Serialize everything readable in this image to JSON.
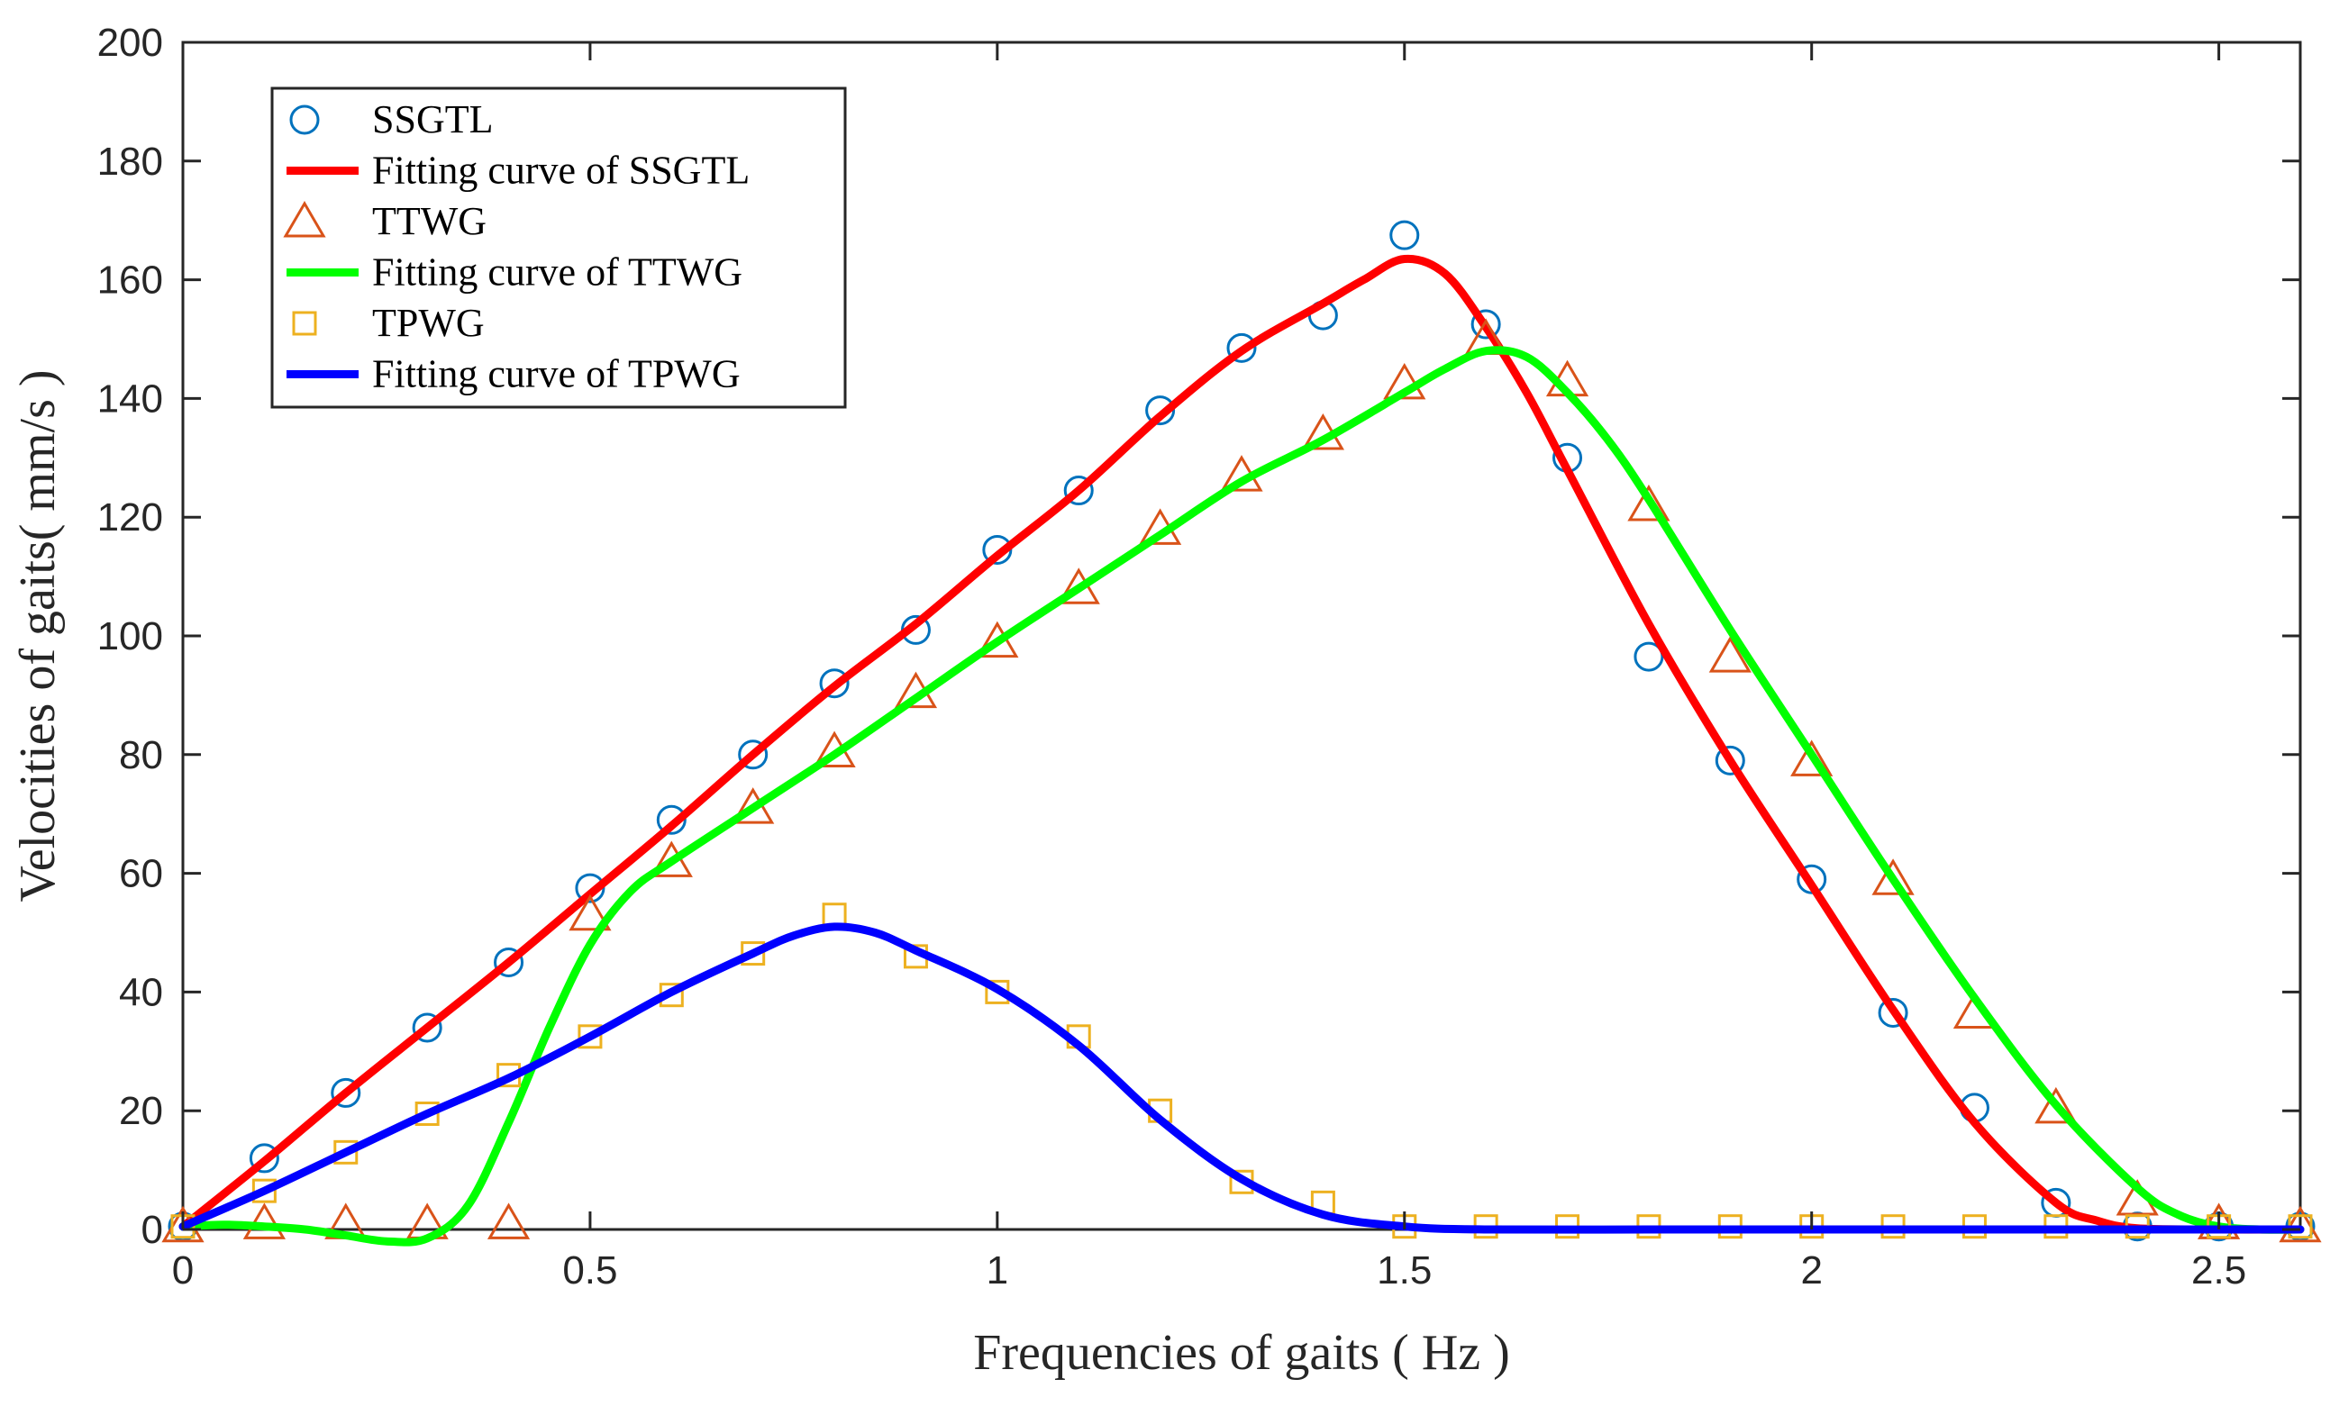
{
  "chart_data": {
    "type": "line",
    "title": "",
    "xlabel": "Frequencies of gaits ( Hz )",
    "ylabel": "Velocities of gaits( mm/s )",
    "xlim": [
      0,
      2.6
    ],
    "ylim": [
      0,
      200
    ],
    "xticks": [
      0,
      0.5,
      1,
      1.5,
      2,
      2.5
    ],
    "xtick_labels": [
      "0",
      "0.5",
      "1",
      "1.5",
      "2",
      "2.5"
    ],
    "yticks": [
      0,
      20,
      40,
      60,
      80,
      100,
      120,
      140,
      160,
      180,
      200
    ],
    "ytick_labels": [
      "0",
      "20",
      "40",
      "60",
      "80",
      "100",
      "120",
      "140",
      "160",
      "180",
      "200"
    ],
    "grid": false,
    "legend_position": "top-left",
    "series": [
      {
        "name": "SSGTL",
        "kind": "markers",
        "marker": "circle",
        "color": "#0072BD",
        "x": [
          0,
          0.1,
          0.2,
          0.3,
          0.4,
          0.5,
          0.6,
          0.7,
          0.8,
          0.9,
          1.0,
          1.1,
          1.2,
          1.3,
          1.4,
          1.5,
          1.6,
          1.7,
          1.8,
          1.9,
          2.0,
          2.1,
          2.2,
          2.3,
          2.4,
          2.5,
          2.6
        ],
        "y": [
          0.5,
          12,
          23,
          34,
          45,
          57.5,
          69,
          80,
          92,
          101,
          114.5,
          124.5,
          138,
          148.5,
          154,
          167.5,
          152.5,
          130,
          96.5,
          79,
          59,
          36.5,
          20.5,
          4.5,
          0.5,
          0.5,
          0.5
        ]
      },
      {
        "name": "Fitting curve of SSGTL",
        "kind": "line",
        "color": "#FF0000",
        "x": [
          0,
          0.1,
          0.2,
          0.3,
          0.4,
          0.5,
          0.6,
          0.7,
          0.8,
          0.9,
          1.0,
          1.1,
          1.2,
          1.3,
          1.4,
          1.45,
          1.5,
          1.55,
          1.6,
          1.65,
          1.7,
          1.8,
          1.9,
          2.0,
          2.1,
          2.2,
          2.3,
          2.35,
          2.4,
          2.5,
          2.6
        ],
        "y": [
          0.5,
          11.5,
          23,
          34,
          45,
          56.5,
          68,
          80,
          91.5,
          102,
          113.5,
          124.5,
          137,
          148,
          156,
          160,
          163.5,
          161,
          152,
          141,
          128,
          102,
          79,
          58,
          37,
          18,
          4.5,
          1.5,
          0.2,
          0,
          0
        ]
      },
      {
        "name": "TTWG",
        "kind": "markers",
        "marker": "triangle",
        "color": "#D95319",
        "x": [
          0,
          0.1,
          0.2,
          0.3,
          0.4,
          0.5,
          0.6,
          0.7,
          0.8,
          0.9,
          1.0,
          1.1,
          1.2,
          1.3,
          1.4,
          1.5,
          1.6,
          1.7,
          1.8,
          1.9,
          2.0,
          2.1,
          2.2,
          2.3,
          2.4,
          2.5,
          2.6
        ],
        "y": [
          0.5,
          1,
          1,
          1,
          1,
          53,
          62,
          71,
          80.5,
          90.5,
          99,
          108,
          118,
          127,
          134,
          142.5,
          150,
          143,
          122,
          96.5,
          79,
          59,
          36.5,
          20.5,
          5,
          1,
          0.5
        ]
      },
      {
        "name": "Fitting curve of TTWG",
        "kind": "line",
        "color": "#00FF00",
        "x": [
          0,
          0.05,
          0.1,
          0.15,
          0.2,
          0.25,
          0.3,
          0.35,
          0.4,
          0.45,
          0.5,
          0.55,
          0.6,
          0.7,
          0.8,
          0.9,
          1.0,
          1.1,
          1.2,
          1.3,
          1.4,
          1.5,
          1.55,
          1.6,
          1.65,
          1.7,
          1.75,
          1.8,
          1.9,
          2.0,
          2.1,
          2.2,
          2.3,
          2.4,
          2.45,
          2.5,
          2.55,
          2.6
        ],
        "y": [
          0.5,
          0.8,
          0.5,
          0,
          -1,
          -2,
          -1.5,
          4,
          18,
          34,
          48,
          57,
          62,
          71,
          80,
          89.5,
          99,
          108,
          117,
          126,
          133,
          141,
          145,
          148,
          147,
          141,
          133,
          123,
          101,
          80,
          59,
          39,
          21,
          7,
          2.5,
          0.5,
          0,
          0
        ]
      },
      {
        "name": "TPWG",
        "kind": "markers",
        "marker": "square",
        "color": "#EDB120",
        "x": [
          0,
          0.1,
          0.2,
          0.3,
          0.4,
          0.5,
          0.6,
          0.7,
          0.8,
          0.9,
          1.0,
          1.1,
          1.2,
          1.3,
          1.4,
          1.5,
          1.6,
          1.7,
          1.8,
          1.9,
          2.0,
          2.1,
          2.2,
          2.3,
          2.4,
          2.5,
          2.6
        ],
        "y": [
          0.5,
          6.5,
          13,
          19.5,
          26,
          32.5,
          39.5,
          46.5,
          53,
          46,
          40,
          32.5,
          20,
          8,
          4.5,
          0.5,
          0.5,
          0.5,
          0.5,
          0.5,
          0.5,
          0.5,
          0.5,
          0.5,
          0.5,
          0.5,
          0.5
        ]
      },
      {
        "name": "Fitting curve of TPWG",
        "kind": "line",
        "color": "#0000FF",
        "x": [
          0,
          0.1,
          0.2,
          0.3,
          0.4,
          0.5,
          0.6,
          0.7,
          0.75,
          0.8,
          0.85,
          0.9,
          1.0,
          1.1,
          1.2,
          1.3,
          1.4,
          1.5,
          1.6,
          1.8,
          2.0,
          2.2,
          2.4,
          2.6
        ],
        "y": [
          0.5,
          6.5,
          13,
          19.5,
          25.5,
          32.5,
          40,
          46.5,
          49.5,
          51,
          50,
          47,
          40.5,
          31,
          18.5,
          8.5,
          2.5,
          0.5,
          0,
          0,
          0,
          0,
          0,
          0
        ]
      }
    ]
  }
}
